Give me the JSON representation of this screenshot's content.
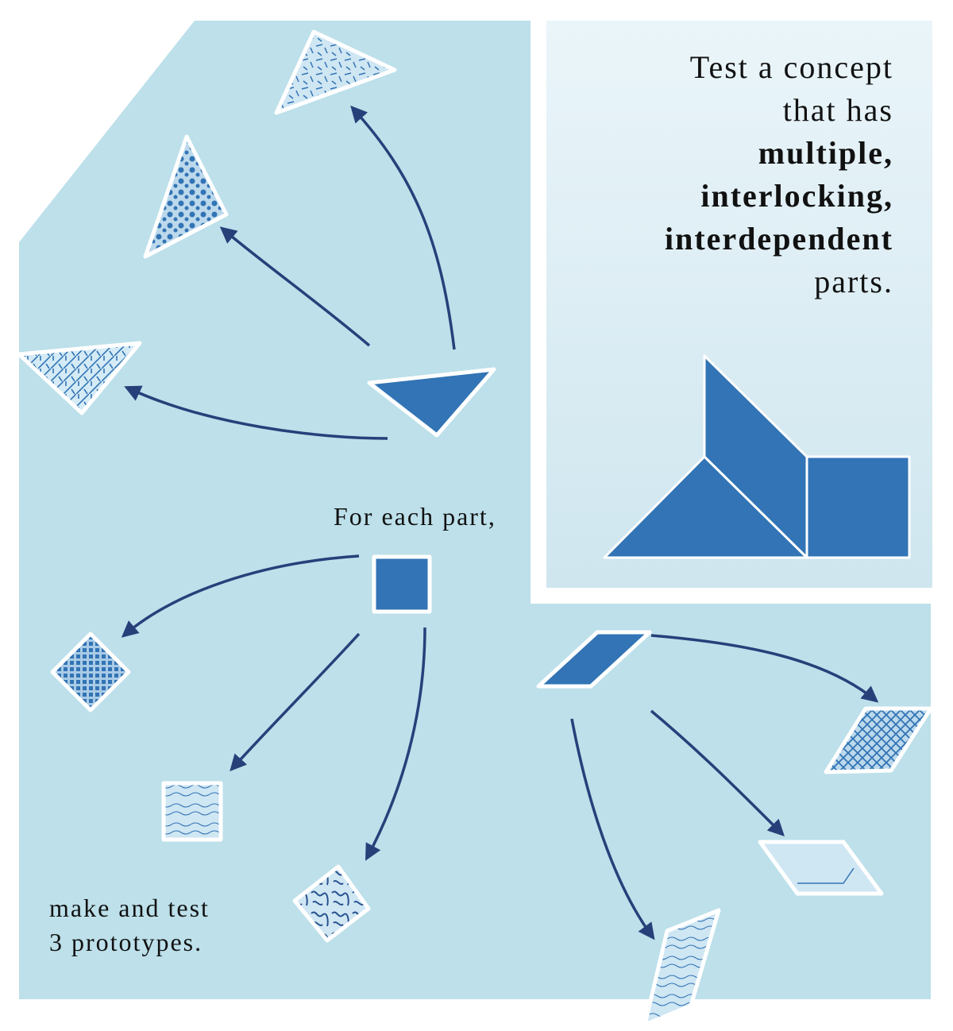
{
  "title": {
    "line1": "Test a concept",
    "line2": "that has",
    "line3": "multiple,",
    "line4": "interlocking,",
    "line5": "interdependent",
    "line6": "parts."
  },
  "labels": {
    "for_each": "For each part,",
    "make_line1": "make and test",
    "make_line2": "3 prototypes."
  },
  "colors": {
    "background": "#bde0ea",
    "panel": "#dcedf4",
    "shape_fill": "#3274b5",
    "arrow": "#27407a",
    "outline": "#ffffff"
  }
}
